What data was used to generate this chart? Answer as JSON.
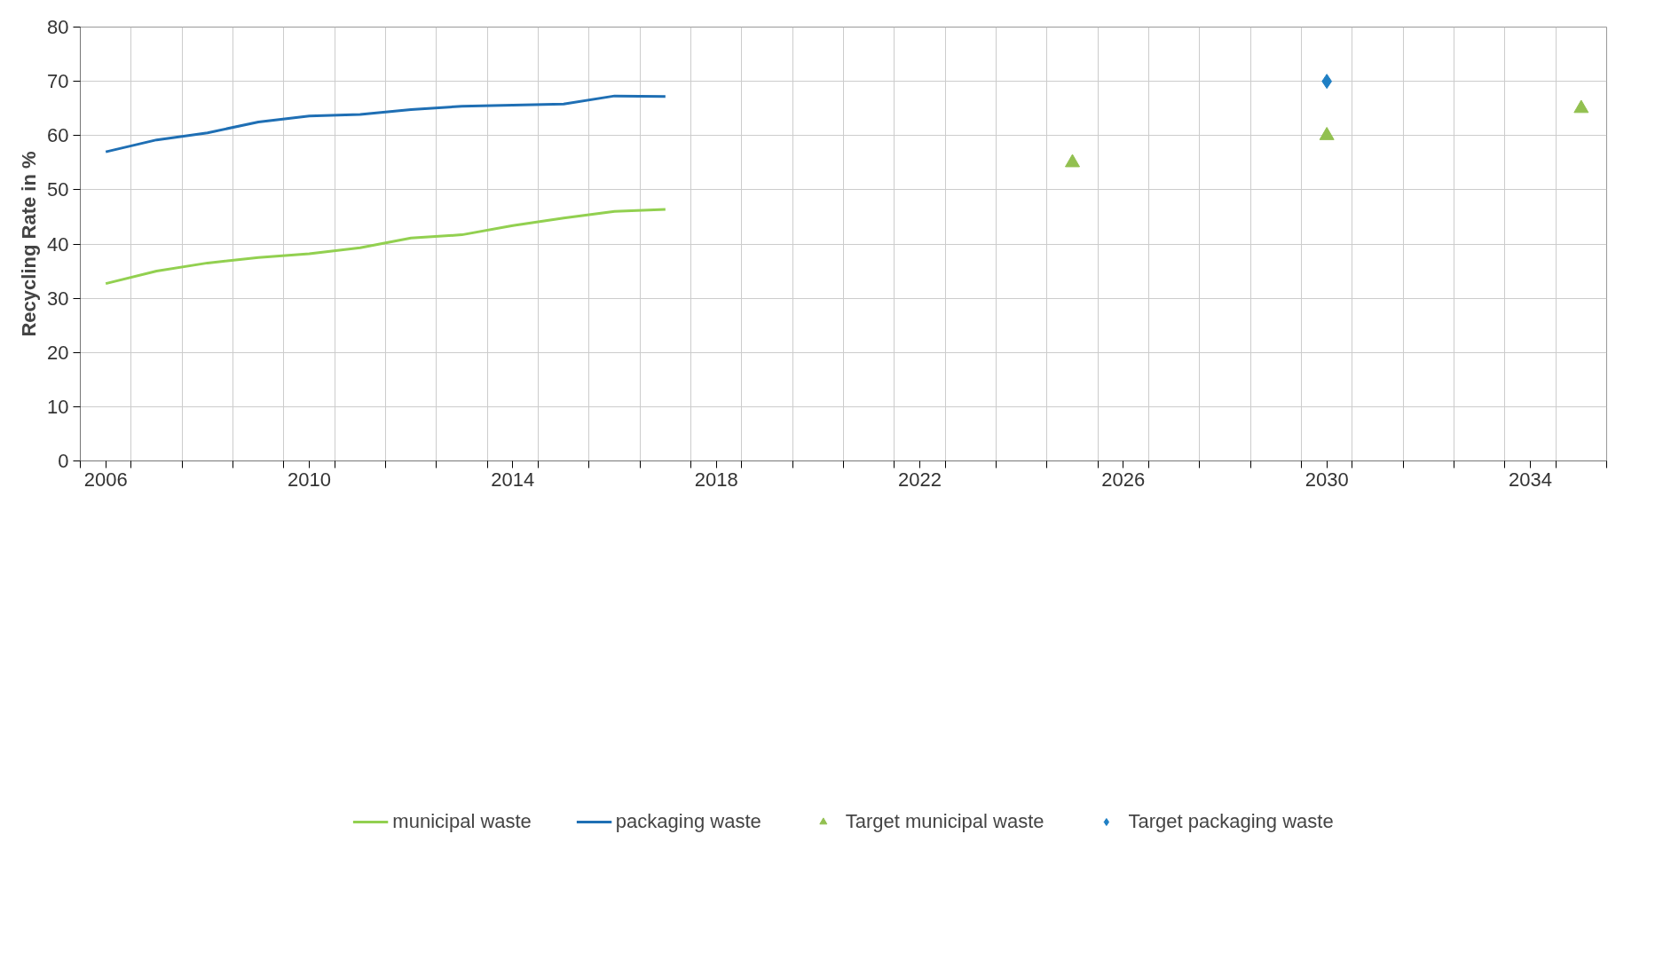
{
  "chart_data": {
    "type": "line",
    "ylabel": "Recycling Rate in %",
    "xlim": [
      2005.5,
      2035.5
    ],
    "ylim": [
      0,
      80
    ],
    "yticks": [
      0,
      10,
      20,
      30,
      40,
      50,
      60,
      70,
      80
    ],
    "xticks": [
      {
        "value": 2005.5,
        "label": null
      },
      2006,
      {
        "value": 2006.5,
        "label": null
      },
      {
        "value": 2007.5,
        "label": null
      },
      {
        "value": 2008.5,
        "label": null
      },
      {
        "value": 2009.5,
        "label": null
      },
      2010,
      {
        "value": 2010.5,
        "label": null
      },
      {
        "value": 2011.5,
        "label": null
      },
      {
        "value": 2012.5,
        "label": null
      },
      {
        "value": 2013.5,
        "label": null
      },
      2014,
      {
        "value": 2014.5,
        "label": null
      },
      {
        "value": 2015.5,
        "label": null
      },
      {
        "value": 2016.5,
        "label": null
      },
      {
        "value": 2017.5,
        "label": null
      },
      2018,
      {
        "value": 2018.5,
        "label": null
      },
      {
        "value": 2019.5,
        "label": null
      },
      {
        "value": 2020.5,
        "label": null
      },
      {
        "value": 2021.5,
        "label": null
      },
      2022,
      {
        "value": 2022.5,
        "label": null
      },
      {
        "value": 2023.5,
        "label": null
      },
      {
        "value": 2024.5,
        "label": null
      },
      {
        "value": 2025.5,
        "label": null
      },
      2026,
      {
        "value": 2026.5,
        "label": null
      },
      {
        "value": 2027.5,
        "label": null
      },
      {
        "value": 2028.5,
        "label": null
      },
      {
        "value": 2029.5,
        "label": null
      },
      2030,
      {
        "value": 2030.5,
        "label": null
      },
      {
        "value": 2031.5,
        "label": null
      },
      {
        "value": 2032.5,
        "label": null
      },
      {
        "value": 2033.5,
        "label": null
      },
      2034,
      {
        "value": 2034.5,
        "label": null
      },
      {
        "value": 2035.5,
        "label": null
      }
    ],
    "grid": true,
    "legend": "bottom",
    "line_style": "solid",
    "series": [
      {
        "name": "municipal waste",
        "color": "#92d050",
        "marker": "none",
        "x": [
          2006,
          2007,
          2008,
          2009,
          2010,
          2011,
          2012,
          2013,
          2014,
          2015,
          2016,
          2017
        ],
        "values": [
          32.7,
          35,
          36.5,
          37.5,
          38.2,
          39.3,
          41.1,
          41.7,
          43.4,
          44.8,
          46,
          46.4
        ]
      },
      {
        "name": "packaging waste",
        "color": "#1f6fb4",
        "marker": "none",
        "x": [
          2006,
          2007,
          2008,
          2009,
          2010,
          2011,
          2012,
          2013,
          2014,
          2015,
          2016,
          2017
        ],
        "values": [
          57,
          59.2,
          60.5,
          62.5,
          63.6,
          63.9,
          64.8,
          65.4,
          65.6,
          65.8,
          67.3,
          67.2
        ]
      },
      {
        "name": "Target municipal waste",
        "color": "#92c050",
        "type": "scatter",
        "marker": "triangle",
        "x": [
          2025,
          2030,
          2035
        ],
        "values": [
          55,
          60,
          65
        ]
      },
      {
        "name": "Target packaging waste",
        "color": "#1f7fc4",
        "type": "scatter",
        "marker": "diamond",
        "x": [
          2030
        ],
        "values": [
          70
        ]
      }
    ]
  }
}
